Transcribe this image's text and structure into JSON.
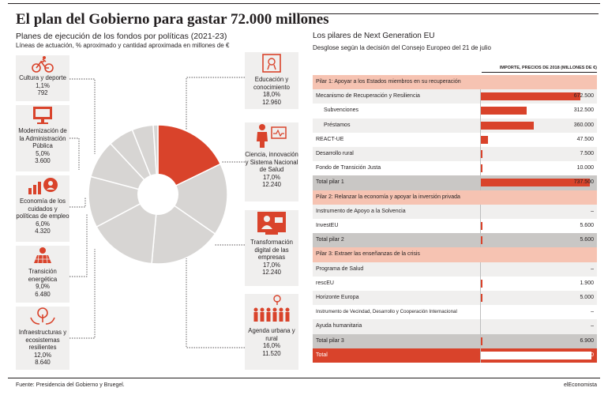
{
  "title": "El plan del Gobierno para gastar 72.000 millones",
  "left_subtitle": "Planes de ejecución de los fondos por políticas (2021-23)",
  "left_note": "Líneas de actuación, % aproximado y cantidad aproximada en millones de €",
  "right_subtitle": "Los pilares de Next Generation EU",
  "right_note": "Desglose según la decisión del Consejo Europeo del 21 de julio",
  "colors": {
    "accent": "#d9432b",
    "pie_grey": "#d7d5d3",
    "pillar_bg": "#f6c3b2",
    "total_bg": "#c9c7c5",
    "row_alt": "#f0efee"
  },
  "chart_data": [
    {
      "type": "pie",
      "title": "Planes de ejecución de los fondos por políticas (2021-23)",
      "unit": "millones de €",
      "slices": [
        {
          "label": "Educación y conocimiento",
          "pct_label": "18,0%",
          "amount_label": "12.960",
          "value": 18.0,
          "icon": "diploma-icon",
          "highlight": true
        },
        {
          "label": "Ciencia, innovación y Sistema Nacional de Salud",
          "pct_label": "17,0%",
          "amount_label": "12.240",
          "value": 17.0,
          "icon": "doctor-icon",
          "highlight": false
        },
        {
          "label": "Transformación digital de las empresas",
          "pct_label": "17,0%",
          "amount_label": "12.240",
          "value": 17.0,
          "icon": "digital-user-icon",
          "highlight": false
        },
        {
          "label": "Agenda urbana y rural",
          "pct_label": "16,0%",
          "amount_label": "11.520",
          "value": 16.0,
          "icon": "people-tree-icon",
          "highlight": false
        },
        {
          "label": "Infraestructuras y ecosistemas resilientes",
          "pct_label": "12,0%",
          "amount_label": "8.640",
          "value": 12.0,
          "icon": "hands-tree-icon",
          "highlight": false
        },
        {
          "label": "Transición energética",
          "pct_label": "9,0%",
          "amount_label": "6.480",
          "value": 9.0,
          "icon": "solar-panel-icon",
          "highlight": false
        },
        {
          "label": "Economía de los cuidados y políticas de empleo",
          "pct_label": "6,0%",
          "amount_label": "4.320",
          "value": 6.0,
          "icon": "growth-chart-icon",
          "highlight": false
        },
        {
          "label": "Modernización de la Administración Pública",
          "pct_label": "5,0%",
          "amount_label": "3.600",
          "value": 5.0,
          "icon": "computer-icon",
          "highlight": false
        },
        {
          "label": "Cultura y deporte",
          "pct_label": "1,1%",
          "amount_label": "792",
          "value": 1.1,
          "icon": "cyclist-icon",
          "highlight": false
        }
      ]
    },
    {
      "type": "bar",
      "title": "Los pilares de Next Generation EU",
      "value_header": "IMPORTE, PRECIOS DE 2018 (MILLONES DE €)",
      "xlim": [
        0,
        750000
      ],
      "rows": [
        {
          "kind": "pillar",
          "label": "Pilar 1: Apoyar a los Estados miembros en su recuperación"
        },
        {
          "kind": "item",
          "label": "Mecanismo de Recuperación y Resiliencia",
          "value": 672500,
          "value_label": "672.500",
          "indent": 0
        },
        {
          "kind": "item",
          "label": "Subvenciones",
          "value": 312500,
          "value_label": "312.500",
          "indent": 1
        },
        {
          "kind": "item",
          "label": "Préstamos",
          "value": 360000,
          "value_label": "360.000",
          "indent": 1
        },
        {
          "kind": "item",
          "label": "REACT-UE",
          "value": 47500,
          "value_label": "47.500",
          "indent": 0
        },
        {
          "kind": "item",
          "label": "Desarrollo rural",
          "value": 7500,
          "value_label": "7.500",
          "indent": 0
        },
        {
          "kind": "item",
          "label": "Fondo de Transición Justa",
          "value": 10000,
          "value_label": "10.000",
          "indent": 0
        },
        {
          "kind": "total",
          "label": "Total pilar 1",
          "value": 737500,
          "value_label": "737.500",
          "indent": 0
        },
        {
          "kind": "pillar",
          "label": "Pilar 2: Relanzar la economía y apoyar la inversión privada"
        },
        {
          "kind": "item",
          "label": "Instrumento de Apoyo a la Solvencia",
          "value": 0,
          "value_label": "–",
          "indent": 0
        },
        {
          "kind": "item",
          "label": "InvestEU",
          "value": 5600,
          "value_label": "5.600",
          "indent": 0
        },
        {
          "kind": "total",
          "label": "Total pilar 2",
          "value": 5600,
          "value_label": "5.600",
          "indent": 0
        },
        {
          "kind": "pillar",
          "label": "Pilar 3: Extraer las enseñanzas de la crisis"
        },
        {
          "kind": "item",
          "label": "Programa de Salud",
          "value": 0,
          "value_label": "–",
          "indent": 0
        },
        {
          "kind": "item",
          "label": "rescEU",
          "value": 1900,
          "value_label": "1.900",
          "indent": 0
        },
        {
          "kind": "item",
          "label": "Horizonte Europa",
          "value": 5000,
          "value_label": "5.000",
          "indent": 0
        },
        {
          "kind": "item",
          "label": "Instrumento de Vecindad, Desarrollo y Cooperación Internacional",
          "value": 0,
          "value_label": "–",
          "indent": 0
        },
        {
          "kind": "item",
          "label": "Ayuda humanitaria",
          "value": 0,
          "value_label": "–",
          "indent": 0
        },
        {
          "kind": "total",
          "label": "Total pilar 3",
          "value": 6900,
          "value_label": "6.900",
          "indent": 0
        },
        {
          "kind": "grand",
          "label": "Total",
          "value": 750000,
          "value_label": "750.000",
          "indent": 0
        }
      ]
    }
  ],
  "source": "Fuente: Presidencia del Gobierno y Bruegel.",
  "brand": "elEconomista"
}
